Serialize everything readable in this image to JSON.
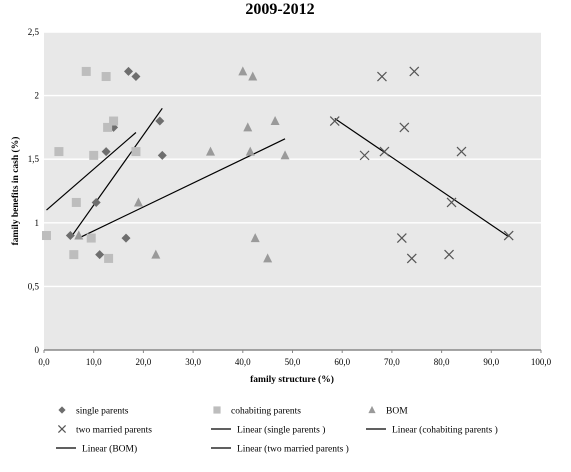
{
  "chart_data": {
    "type": "scatter",
    "title": "2009-2012",
    "xlabel": "family structure (%)",
    "ylabel": "family benefits in cash (%)",
    "xlim": [
      0,
      100
    ],
    "ylim": [
      0,
      2.5
    ],
    "x_ticks": [
      "0,0",
      "10,0",
      "20,0",
      "30,0",
      "40,0",
      "50,0",
      "60,0",
      "70,0",
      "80,0",
      "90,0",
      "100,0"
    ],
    "y_ticks": [
      "0",
      "0,5",
      "1",
      "1,5",
      "2",
      "2,5"
    ],
    "grid": true,
    "legend_position": "bottom",
    "series": [
      {
        "name": "single parents",
        "marker": "diamond",
        "color": "#6e6e6e",
        "points": [
          [
            5.3,
            0.9
          ],
          [
            11.2,
            0.75
          ],
          [
            12.5,
            1.56
          ],
          [
            10.5,
            1.16
          ],
          [
            14.0,
            1.75
          ],
          [
            16.5,
            0.88
          ],
          [
            17.0,
            2.19
          ],
          [
            18.5,
            2.15
          ],
          [
            23.3,
            1.8
          ],
          [
            23.8,
            1.53
          ]
        ]
      },
      {
        "name": "cohabiting parents",
        "marker": "square",
        "color": "#bdbdbd",
        "points": [
          [
            0.5,
            0.9
          ],
          [
            3.0,
            1.56
          ],
          [
            6.0,
            0.75
          ],
          [
            6.5,
            1.16
          ],
          [
            8.5,
            2.19
          ],
          [
            9.5,
            0.88
          ],
          [
            10.0,
            1.53
          ],
          [
            12.5,
            2.15
          ],
          [
            12.8,
            1.75
          ],
          [
            13.0,
            0.72
          ],
          [
            14.0,
            1.8
          ],
          [
            18.5,
            1.56
          ]
        ]
      },
      {
        "name": "BOM",
        "marker": "triangle",
        "color": "#9a9a9a",
        "points": [
          [
            7.0,
            0.9
          ],
          [
            19.0,
            1.16
          ],
          [
            22.5,
            0.75
          ],
          [
            33.5,
            1.56
          ],
          [
            40.0,
            2.19
          ],
          [
            41.0,
            1.75
          ],
          [
            41.5,
            1.56
          ],
          [
            42.0,
            2.15
          ],
          [
            42.5,
            0.88
          ],
          [
            45.0,
            0.72
          ],
          [
            46.5,
            1.8
          ],
          [
            48.5,
            1.53
          ]
        ]
      },
      {
        "name": "two married parents",
        "marker": "x",
        "color": "#555555",
        "points": [
          [
            58.5,
            1.8
          ],
          [
            64.5,
            1.53
          ],
          [
            68.0,
            2.15
          ],
          [
            68.5,
            1.56
          ],
          [
            72.0,
            0.88
          ],
          [
            72.5,
            1.75
          ],
          [
            74.0,
            0.72
          ],
          [
            74.5,
            2.19
          ],
          [
            81.5,
            0.75
          ],
          [
            82.0,
            1.16
          ],
          [
            84.0,
            1.56
          ],
          [
            93.5,
            0.9
          ]
        ]
      }
    ],
    "trendlines": [
      {
        "name": "Linear (single parents )",
        "x": [
          5.3,
          23.8
        ],
        "y": [
          0.88,
          1.9
        ]
      },
      {
        "name": "Linear (cohabiting parents )",
        "x": [
          0.5,
          18.5
        ],
        "y": [
          1.1,
          1.71
        ]
      },
      {
        "name": "Linear (BOM)",
        "x": [
          7.0,
          48.5
        ],
        "y": [
          0.88,
          1.66
        ]
      },
      {
        "name": "Linear (two married parents )",
        "x": [
          58.5,
          93.5
        ],
        "y": [
          1.82,
          0.89
        ]
      }
    ],
    "legend": [
      {
        "label": "single parents",
        "symbol": "diamond",
        "color": "#6e6e6e"
      },
      {
        "label": "cohabiting parents",
        "symbol": "square",
        "color": "#bdbdbd"
      },
      {
        "label": "BOM",
        "symbol": "triangle",
        "color": "#9a9a9a"
      },
      {
        "label": "two married parents",
        "symbol": "x",
        "color": "#555555"
      },
      {
        "label": "Linear (single parents )",
        "symbol": "line",
        "color": "#000000"
      },
      {
        "label": "Linear (cohabiting parents )",
        "symbol": "line",
        "color": "#000000"
      },
      {
        "label": "Linear (BOM)",
        "symbol": "line",
        "color": "#000000"
      },
      {
        "label": "Linear (two married parents )",
        "symbol": "line",
        "color": "#000000"
      }
    ],
    "colors": {
      "plot_background": "#e8e8e8",
      "gridline": "#ffffff",
      "trendline": "#000000"
    }
  }
}
